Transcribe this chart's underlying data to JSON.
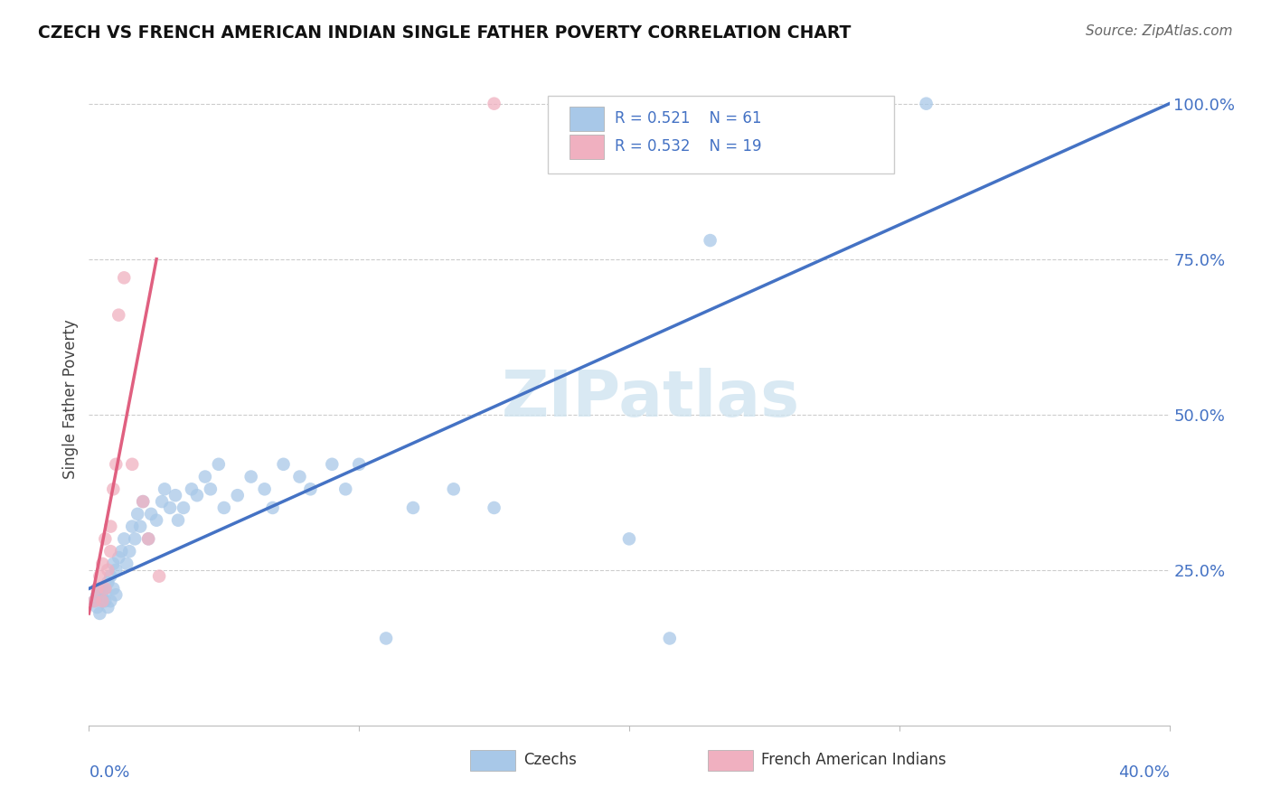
{
  "title": "CZECH VS FRENCH AMERICAN INDIAN SINGLE FATHER POVERTY CORRELATION CHART",
  "source": "Source: ZipAtlas.com",
  "ylabel": "Single Father Poverty",
  "legend_blue_r": "R = 0.521",
  "legend_blue_n": "N = 61",
  "legend_pink_r": "R = 0.532",
  "legend_pink_n": "N = 19",
  "blue_scatter_color": "#A8C8E8",
  "pink_scatter_color": "#F0B0C0",
  "line_blue_color": "#4472C4",
  "line_pink_color": "#E06080",
  "watermark_color": "#D0E4F0",
  "czechs_label": "Czechs",
  "french_label": "French American Indians",
  "czechs_x": [
    0.002,
    0.003,
    0.003,
    0.004,
    0.004,
    0.005,
    0.005,
    0.005,
    0.006,
    0.006,
    0.007,
    0.007,
    0.008,
    0.008,
    0.009,
    0.009,
    0.01,
    0.01,
    0.011,
    0.012,
    0.013,
    0.014,
    0.015,
    0.016,
    0.017,
    0.018,
    0.019,
    0.02,
    0.022,
    0.023,
    0.025,
    0.027,
    0.028,
    0.03,
    0.032,
    0.033,
    0.035,
    0.038,
    0.04,
    0.043,
    0.045,
    0.048,
    0.05,
    0.055,
    0.06,
    0.065,
    0.068,
    0.072,
    0.078,
    0.082,
    0.09,
    0.095,
    0.1,
    0.11,
    0.12,
    0.135,
    0.15,
    0.2,
    0.215,
    0.23,
    0.31
  ],
  "czechs_y": [
    0.2,
    0.19,
    0.21,
    0.18,
    0.22,
    0.2,
    0.21,
    0.22,
    0.2,
    0.22,
    0.19,
    0.23,
    0.2,
    0.24,
    0.22,
    0.26,
    0.21,
    0.25,
    0.27,
    0.28,
    0.3,
    0.26,
    0.28,
    0.32,
    0.3,
    0.34,
    0.32,
    0.36,
    0.3,
    0.34,
    0.33,
    0.36,
    0.38,
    0.35,
    0.37,
    0.33,
    0.35,
    0.38,
    0.37,
    0.4,
    0.38,
    0.42,
    0.35,
    0.37,
    0.4,
    0.38,
    0.35,
    0.42,
    0.4,
    0.38,
    0.42,
    0.38,
    0.42,
    0.14,
    0.35,
    0.38,
    0.35,
    0.3,
    0.14,
    0.78,
    1.0
  ],
  "french_x": [
    0.002,
    0.003,
    0.004,
    0.005,
    0.005,
    0.006,
    0.006,
    0.007,
    0.008,
    0.008,
    0.009,
    0.01,
    0.011,
    0.013,
    0.016,
    0.02,
    0.022,
    0.026,
    0.15
  ],
  "french_y": [
    0.2,
    0.22,
    0.24,
    0.2,
    0.26,
    0.22,
    0.3,
    0.25,
    0.28,
    0.32,
    0.38,
    0.42,
    0.66,
    0.72,
    0.42,
    0.36,
    0.3,
    0.24,
    1.0
  ],
  "blue_line_x": [
    0.0,
    0.4
  ],
  "blue_line_y": [
    0.22,
    1.0
  ],
  "pink_line_x": [
    0.0,
    0.025
  ],
  "pink_line_y": [
    0.18,
    0.75
  ],
  "xlim": [
    0.0,
    0.4
  ],
  "ylim": [
    0.0,
    1.05
  ],
  "y_ticks": [
    0.25,
    0.5,
    0.75,
    1.0
  ],
  "y_tick_labels": [
    "25.0%",
    "50.0%",
    "75.0%",
    "100.0%"
  ],
  "x_tick_left": "0.0%",
  "x_tick_right": "40.0%"
}
